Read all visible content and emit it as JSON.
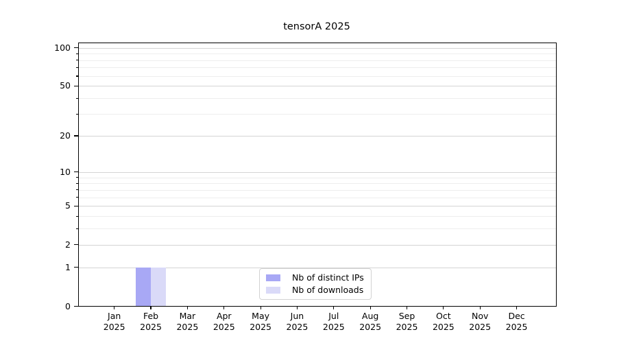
{
  "chart_data": {
    "type": "bar",
    "title": "tensorA 2025",
    "x_tick_labels": [
      {
        "month": "Jan",
        "year": "2025"
      },
      {
        "month": "Feb",
        "year": "2025"
      },
      {
        "month": "Mar",
        "year": "2025"
      },
      {
        "month": "Apr",
        "year": "2025"
      },
      {
        "month": "May",
        "year": "2025"
      },
      {
        "month": "Jun",
        "year": "2025"
      },
      {
        "month": "Jul",
        "year": "2025"
      },
      {
        "month": "Aug",
        "year": "2025"
      },
      {
        "month": "Sep",
        "year": "2025"
      },
      {
        "month": "Oct",
        "year": "2025"
      },
      {
        "month": "Nov",
        "year": "2025"
      },
      {
        "month": "Dec",
        "year": "2025"
      }
    ],
    "series": [
      {
        "name": "Nb of distinct IPs",
        "color": "#a8a8f5",
        "values": [
          0,
          1,
          0,
          0,
          0,
          0,
          0,
          0,
          0,
          0,
          0,
          0
        ]
      },
      {
        "name": "Nb of downloads",
        "color": "#dadaf8",
        "values": [
          0,
          1,
          0,
          0,
          0,
          0,
          0,
          0,
          0,
          0,
          0,
          0
        ]
      }
    ],
    "y_axis": {
      "scale": "log1p",
      "major_ticks": [
        0,
        1,
        2,
        5,
        10,
        20,
        50,
        100
      ],
      "major_tick_labels": [
        "0",
        "1",
        "2",
        "5",
        "10",
        "20",
        "50",
        "100"
      ],
      "minor_ticks": [
        3,
        4,
        6,
        7,
        8,
        9,
        30,
        40,
        60,
        70,
        80,
        90
      ],
      "ylim": [
        0,
        110
      ]
    },
    "legend": {
      "position": "lower center"
    },
    "grid": "horizontal",
    "colors": {
      "major_grid": "#d4d4d4",
      "minor_grid": "#ededed",
      "axis": "#000000",
      "background": "#ffffff"
    }
  }
}
